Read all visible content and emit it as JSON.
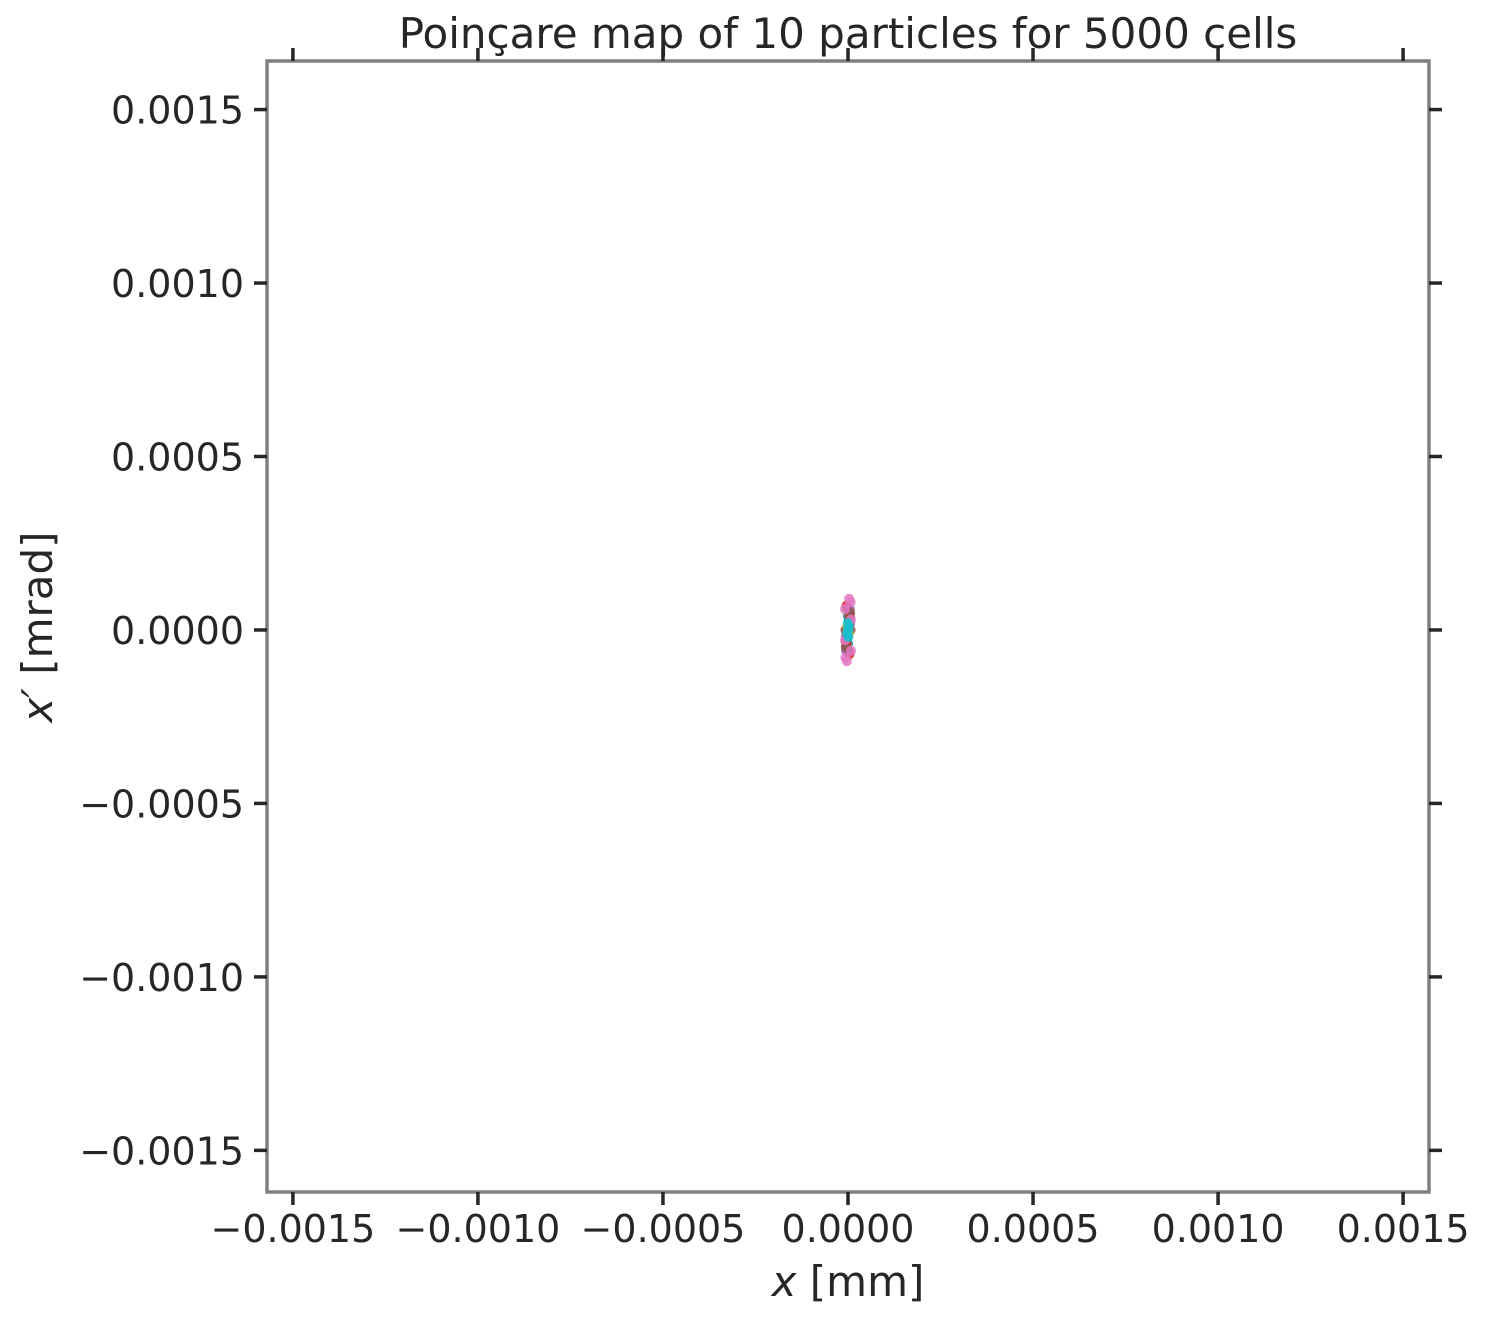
{
  "chart_data": {
    "type": "scatter",
    "title": "Poinçare map of 10 particles for 5000 cells",
    "xlabel_var": "x",
    "xlabel_unit": "[mm]",
    "ylabel_var": "x′",
    "ylabel_unit": "[mrad]",
    "xlim": [
      -0.00157,
      0.00157
    ],
    "ylim": [
      -0.00162,
      0.00164
    ],
    "xticks": [
      -0.0015,
      -0.001,
      -0.0005,
      0.0,
      0.0005,
      0.001,
      0.0015
    ],
    "xtick_labels": [
      "−0.0015",
      "−0.0010",
      "−0.0005",
      "0.0000",
      "0.0005",
      "0.0010",
      "0.0015"
    ],
    "yticks": [
      0.0015,
      0.001,
      0.0005,
      0.0,
      -0.0005,
      -0.001,
      -0.0015
    ],
    "ytick_labels": [
      "0.0015",
      "0.0010",
      "0.0005",
      "0.0000",
      "−0.0005",
      "−0.0010",
      "−0.0015"
    ],
    "grid": false,
    "legend": "none",
    "series": [
      {
        "color": "#1f77b4",
        "points": [
          [
            2e-06,
            2e-05
          ],
          [
            -2e-06,
            -2e-05
          ],
          [
            0.0,
            4e-05
          ],
          [
            0.0,
            -4e-05
          ]
        ]
      },
      {
        "color": "#ff7f0e",
        "points": [
          [
            4e-06,
            1e-05
          ],
          [
            -4e-06,
            -1e-05
          ],
          [
            2e-06,
            5e-05
          ],
          [
            -2e-06,
            -5e-05
          ]
        ]
      },
      {
        "color": "#2ca02c",
        "points": [
          [
            3e-06,
            3e-05
          ],
          [
            -3e-06,
            -3e-05
          ],
          [
            1e-06,
            -6e-05
          ],
          [
            -1e-06,
            6e-05
          ]
        ]
      },
      {
        "color": "#d62728",
        "points": [
          [
            5e-06,
            4e-05
          ],
          [
            -5e-06,
            -4e-05
          ],
          [
            4e-06,
            -7e-05
          ],
          [
            -4e-06,
            7e-05
          ]
        ]
      },
      {
        "color": "#9467bd",
        "points": [
          [
            6e-06,
            2e-05
          ],
          [
            -6e-06,
            -2e-05
          ],
          [
            5e-06,
            6e-05
          ],
          [
            -5e-06,
            -6e-05
          ]
        ]
      },
      {
        "color": "#8c564b",
        "points": [
          [
            7e-06,
            0.0
          ],
          [
            -7e-06,
            0.0
          ],
          [
            6e-06,
            5e-05
          ],
          [
            -6e-06,
            -5e-05
          ]
        ]
      },
      {
        "color": "#e377c2",
        "points": [
          [
            8e-06,
            3e-05
          ],
          [
            -8e-06,
            -3e-05
          ],
          [
            7e-06,
            8e-05
          ],
          [
            -7e-06,
            -8e-05
          ],
          [
            8e-06,
            -6e-05
          ],
          [
            -8e-06,
            6e-05
          ],
          [
            3e-06,
            9e-05
          ],
          [
            -3e-06,
            -9e-05
          ]
        ]
      },
      {
        "color": "#7f7f7f",
        "points": [
          [
            3e-06,
            1e-05
          ],
          [
            -3e-06,
            -1e-05
          ]
        ]
      },
      {
        "color": "#bcbd22",
        "points": [
          [
            2e-06,
            -1e-05
          ],
          [
            -2e-06,
            1e-05
          ]
        ]
      },
      {
        "color": "#17becf",
        "points": [
          [
            0.0,
            0.0
          ],
          [
            2e-06,
            1e-05
          ],
          [
            -2e-06,
            -1e-05
          ],
          [
            1e-06,
            -2e-05
          ],
          [
            -1e-06,
            2e-05
          ]
        ]
      }
    ]
  }
}
